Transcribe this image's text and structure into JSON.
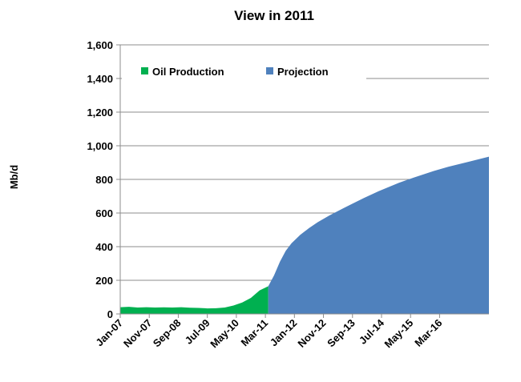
{
  "chart_data": {
    "type": "area",
    "title": "View in 2011",
    "xlabel": "",
    "ylabel": "Mb/d",
    "ylim": [
      0,
      1600
    ],
    "yticks": [
      "0",
      "200",
      "400",
      "600",
      "800",
      "1,000",
      "1,200",
      "1,400",
      "1,600"
    ],
    "ytick_values": [
      0,
      200,
      400,
      600,
      800,
      1000,
      1200,
      1400,
      1600
    ],
    "xlim": [
      "2007-01",
      "2017-08"
    ],
    "xticks": [
      "Jan-07",
      "Nov-07",
      "Sep-08",
      "Jul-09",
      "May-10",
      "Mar-11",
      "Jan-12",
      "Nov-12",
      "Sep-13",
      "Jul-14",
      "May-15",
      "Mar-16"
    ],
    "xtick_dates": [
      "2007-01",
      "2007-11",
      "2008-09",
      "2009-07",
      "2010-05",
      "2011-03",
      "2012-01",
      "2012-11",
      "2013-09",
      "2014-07",
      "2015-05",
      "2016-03"
    ],
    "grid": "horizontal",
    "legend_position": "top-left",
    "series": [
      {
        "name": "Oil Production",
        "color": "#00b050",
        "x": [
          "2007-01",
          "2007-04",
          "2007-07",
          "2007-10",
          "2008-01",
          "2008-04",
          "2008-07",
          "2008-10",
          "2009-01",
          "2009-04",
          "2009-07",
          "2009-10",
          "2010-01",
          "2010-04",
          "2010-07",
          "2010-10",
          "2011-01",
          "2011-04"
        ],
        "values": [
          40,
          42,
          38,
          40,
          38,
          39,
          38,
          40,
          37,
          36,
          33,
          34,
          38,
          50,
          68,
          95,
          140,
          165
        ]
      },
      {
        "name": "Projection",
        "color": "#4f81bd",
        "x": [
          "2011-04",
          "2011-06",
          "2011-08",
          "2011-10",
          "2011-12",
          "2012-03",
          "2012-06",
          "2012-09",
          "2013-01",
          "2013-06",
          "2014-01",
          "2014-06",
          "2015-01",
          "2015-06",
          "2016-01",
          "2016-06",
          "2017-01",
          "2017-08"
        ],
        "values": [
          165,
          230,
          310,
          375,
          420,
          470,
          510,
          545,
          585,
          630,
          690,
          730,
          780,
          810,
          850,
          875,
          905,
          935
        ]
      }
    ]
  }
}
